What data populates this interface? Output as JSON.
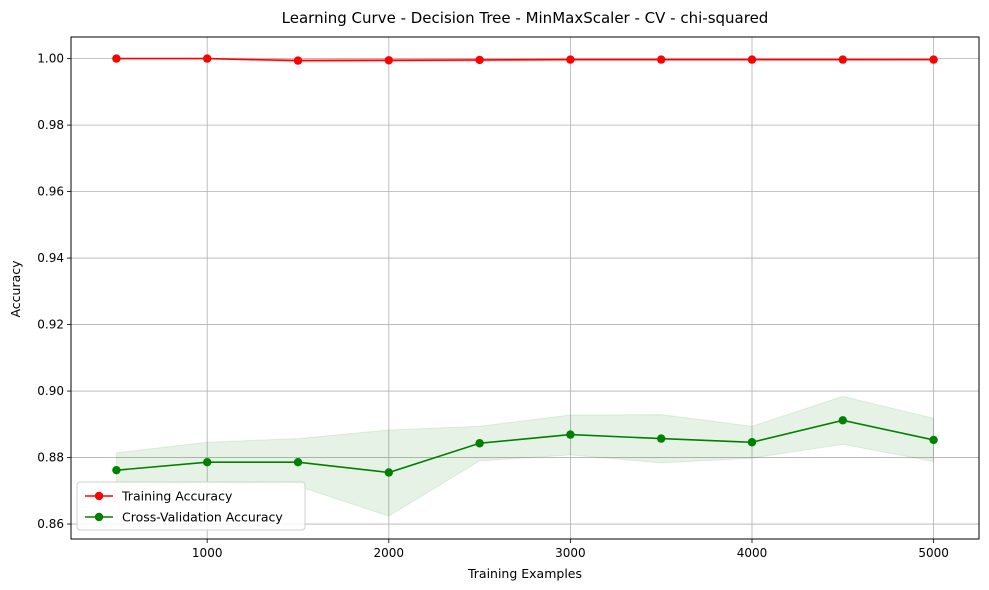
{
  "chart_data": {
    "type": "line",
    "title": "Learning Curve - Decision Tree - MinMaxScaler - CV - chi-squared",
    "xlabel": "Training Examples",
    "ylabel": "Accuracy",
    "xlim": [
      250,
      5250
    ],
    "ylim": [
      0.8555,
      1.0065
    ],
    "xticks": [
      1000,
      2000,
      3000,
      4000,
      5000
    ],
    "yticks": [
      0.86,
      0.88,
      0.9,
      0.92,
      0.94,
      0.96,
      0.98,
      1.0
    ],
    "xtick_labels": [
      "1000",
      "2000",
      "3000",
      "4000",
      "5000"
    ],
    "ytick_labels": [
      "0.86",
      "0.88",
      "0.90",
      "0.92",
      "0.94",
      "0.96",
      "0.98",
      "1.00"
    ],
    "grid": true,
    "legend_position": "lower-left",
    "x": [
      500,
      1000,
      1500,
      2000,
      2500,
      3000,
      3500,
      4000,
      4500,
      5000
    ],
    "series": [
      {
        "name": "Training Accuracy",
        "color": "#ff0000",
        "values": [
          1.0,
          1.0,
          0.9994,
          0.9995,
          0.9996,
          0.9997,
          0.9997,
          0.9997,
          0.9997,
          0.9997
        ],
        "band_lower": [
          1.0,
          1.0,
          0.9989,
          0.999,
          0.9992,
          0.9994,
          0.9994,
          0.9994,
          0.9994,
          0.9995
        ],
        "band_upper": [
          1.0,
          1.0,
          0.9999,
          1.0,
          1.0,
          1.0,
          1.0,
          1.0,
          1.0,
          0.9999
        ]
      },
      {
        "name": "Cross-Validation Accuracy",
        "color": "#008000",
        "values": [
          0.8762,
          0.8786,
          0.8786,
          0.8755,
          0.8843,
          0.8869,
          0.8857,
          0.8846,
          0.8912,
          0.8853
        ],
        "band_lower": [
          0.871,
          0.8725,
          0.8714,
          0.8624,
          0.879,
          0.8808,
          0.8784,
          0.8798,
          0.884,
          0.8788
        ],
        "band_upper": [
          0.8814,
          0.8846,
          0.8857,
          0.8883,
          0.8894,
          0.8928,
          0.8929,
          0.8894,
          0.8984,
          0.8918
        ]
      }
    ]
  }
}
